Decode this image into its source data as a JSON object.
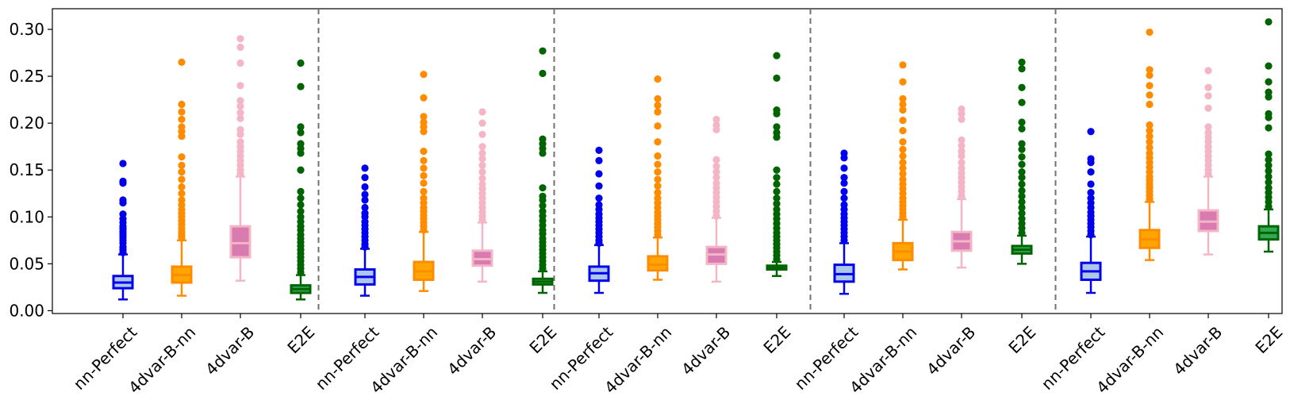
{
  "chart_data": {
    "type": "box",
    "title": "",
    "xlabel": "",
    "ylabel": "",
    "ylim": [
      -0.003,
      0.322
    ],
    "yticks": [
      0.0,
      0.05,
      0.1,
      0.15,
      0.2,
      0.25,
      0.3
    ],
    "ytick_labels": [
      "0.00",
      "0.05",
      "0.10",
      "0.15",
      "0.20",
      "0.25",
      "0.30"
    ],
    "grid": false,
    "legend": "none",
    "categories": [
      "nn-Perfect",
      "4dvar-B-nn",
      "4dvar-B",
      "E2E"
    ],
    "series_styles": [
      {
        "category": "nn-Perfect",
        "edge": "#0000ee",
        "fill": "#aec7e8"
      },
      {
        "category": "4dvar-B-nn",
        "edge": "#ff8c00",
        "fill": "#ffa500"
      },
      {
        "category": "4dvar-B",
        "edge": "#f4b6c6",
        "fill": "#d97bb0"
      },
      {
        "category": "E2E",
        "edge": "#006400",
        "fill": "#32a852"
      }
    ],
    "separator_style": "dashed gray vertical lines between groups",
    "groups": [
      {
        "boxes": [
          {
            "category": "nn-Perfect",
            "whisker_low": 0.012,
            "q1": 0.024,
            "median": 0.03,
            "q3": 0.037,
            "whisker_high": 0.06,
            "outliers": [
              0.062,
              0.065,
              0.068,
              0.072,
              0.075,
              0.078,
              0.081,
              0.084,
              0.087,
              0.09,
              0.094,
              0.098,
              0.103,
              0.115,
              0.118,
              0.136,
              0.138,
              0.157
            ]
          },
          {
            "category": "4dvar-B-nn",
            "whisker_low": 0.016,
            "q1": 0.03,
            "median": 0.038,
            "q3": 0.047,
            "whisker_high": 0.075,
            "outliers": [
              0.078,
              0.081,
              0.084,
              0.088,
              0.092,
              0.096,
              0.1,
              0.104,
              0.108,
              0.113,
              0.118,
              0.125,
              0.132,
              0.14,
              0.148,
              0.155,
              0.164,
              0.186,
              0.191,
              0.196,
              0.204,
              0.212,
              0.22,
              0.265
            ]
          },
          {
            "category": "4dvar-B",
            "whisker_low": 0.032,
            "q1": 0.057,
            "median": 0.072,
            "q3": 0.09,
            "whisker_high": 0.143,
            "outliers": [
              0.146,
              0.15,
              0.155,
              0.16,
              0.165,
              0.17,
              0.175,
              0.18,
              0.188,
              0.193,
              0.205,
              0.211,
              0.218,
              0.224,
              0.24,
              0.264,
              0.281,
              0.29
            ]
          },
          {
            "category": "E2E",
            "whisker_low": 0.012,
            "q1": 0.019,
            "median": 0.023,
            "q3": 0.027,
            "whisker_high": 0.038,
            "outliers": [
              0.041,
              0.045,
              0.049,
              0.053,
              0.057,
              0.061,
              0.065,
              0.069,
              0.073,
              0.077,
              0.081,
              0.086,
              0.09,
              0.095,
              0.1,
              0.106,
              0.113,
              0.12,
              0.127,
              0.15,
              0.168,
              0.173,
              0.178,
              0.19,
              0.196,
              0.239,
              0.264
            ]
          }
        ]
      },
      {
        "boxes": [
          {
            "category": "nn-Perfect",
            "whisker_low": 0.016,
            "q1": 0.028,
            "median": 0.036,
            "q3": 0.044,
            "whisker_high": 0.066,
            "outliers": [
              0.068,
              0.071,
              0.075,
              0.079,
              0.083,
              0.087,
              0.091,
              0.095,
              0.1,
              0.104,
              0.11,
              0.118,
              0.124,
              0.132,
              0.142,
              0.152
            ]
          },
          {
            "category": "4dvar-B-nn",
            "whisker_low": 0.021,
            "q1": 0.033,
            "median": 0.042,
            "q3": 0.052,
            "whisker_high": 0.084,
            "outliers": [
              0.086,
              0.09,
              0.094,
              0.098,
              0.102,
              0.106,
              0.11,
              0.115,
              0.12,
              0.127,
              0.136,
              0.144,
              0.152,
              0.16,
              0.17,
              0.191,
              0.196,
              0.201,
              0.207,
              0.227,
              0.252
            ]
          },
          {
            "category": "4dvar-B",
            "whisker_low": 0.031,
            "q1": 0.048,
            "median": 0.055,
            "q3": 0.064,
            "whisker_high": 0.094,
            "outliers": [
              0.097,
              0.101,
              0.105,
              0.11,
              0.115,
              0.12,
              0.125,
              0.13,
              0.135,
              0.141,
              0.148,
              0.155,
              0.162,
              0.168,
              0.175,
              0.188,
              0.2,
              0.212
            ]
          },
          {
            "category": "E2E",
            "whisker_low": 0.019,
            "q1": 0.028,
            "median": 0.031,
            "q3": 0.034,
            "whisker_high": 0.042,
            "outliers": [
              0.045,
              0.049,
              0.053,
              0.057,
              0.061,
              0.065,
              0.069,
              0.073,
              0.077,
              0.082,
              0.086,
              0.091,
              0.096,
              0.101,
              0.106,
              0.112,
              0.118,
              0.122,
              0.131,
              0.168,
              0.173,
              0.178,
              0.183,
              0.253,
              0.277
            ]
          }
        ]
      },
      {
        "boxes": [
          {
            "category": "nn-Perfect",
            "whisker_low": 0.019,
            "q1": 0.032,
            "median": 0.04,
            "q3": 0.047,
            "whisker_high": 0.07,
            "outliers": [
              0.072,
              0.075,
              0.079,
              0.083,
              0.087,
              0.091,
              0.095,
              0.099,
              0.103,
              0.108,
              0.113,
              0.12,
              0.133,
              0.146,
              0.16,
              0.171
            ]
          },
          {
            "category": "4dvar-B-nn",
            "whisker_low": 0.033,
            "q1": 0.043,
            "median": 0.049,
            "q3": 0.058,
            "whisker_high": 0.078,
            "outliers": [
              0.081,
              0.085,
              0.089,
              0.093,
              0.097,
              0.101,
              0.105,
              0.11,
              0.115,
              0.12,
              0.126,
              0.133,
              0.14,
              0.148,
              0.156,
              0.165,
              0.18,
              0.197,
              0.212,
              0.219,
              0.226,
              0.247
            ]
          },
          {
            "category": "4dvar-B",
            "whisker_low": 0.031,
            "q1": 0.05,
            "median": 0.06,
            "q3": 0.068,
            "whisker_high": 0.099,
            "outliers": [
              0.101,
              0.106,
              0.111,
              0.116,
              0.121,
              0.126,
              0.131,
              0.136,
              0.142,
              0.148,
              0.154,
              0.161,
              0.193,
              0.198,
              0.204
            ]
          },
          {
            "category": "E2E",
            "whisker_low": 0.037,
            "q1": 0.044,
            "median": 0.046,
            "q3": 0.048,
            "whisker_high": 0.052,
            "outliers": [
              0.055,
              0.059,
              0.063,
              0.067,
              0.071,
              0.075,
              0.079,
              0.083,
              0.088,
              0.093,
              0.098,
              0.103,
              0.108,
              0.114,
              0.12,
              0.127,
              0.135,
              0.142,
              0.15,
              0.185,
              0.19,
              0.196,
              0.21,
              0.214,
              0.248,
              0.272
            ]
          }
        ]
      },
      {
        "boxes": [
          {
            "category": "nn-Perfect",
            "whisker_low": 0.018,
            "q1": 0.031,
            "median": 0.039,
            "q3": 0.049,
            "whisker_high": 0.072,
            "outliers": [
              0.075,
              0.079,
              0.083,
              0.087,
              0.091,
              0.095,
              0.099,
              0.103,
              0.108,
              0.113,
              0.12,
              0.127,
              0.136,
              0.142,
              0.152,
              0.163,
              0.168
            ]
          },
          {
            "category": "4dvar-B-nn",
            "whisker_low": 0.044,
            "q1": 0.054,
            "median": 0.063,
            "q3": 0.072,
            "whisker_high": 0.097,
            "outliers": [
              0.1,
              0.104,
              0.108,
              0.112,
              0.116,
              0.12,
              0.125,
              0.13,
              0.135,
              0.14,
              0.146,
              0.152,
              0.158,
              0.165,
              0.172,
              0.18,
              0.192,
              0.203,
              0.214,
              0.22,
              0.226,
              0.244,
              0.262
            ]
          },
          {
            "category": "4dvar-B",
            "whisker_low": 0.046,
            "q1": 0.064,
            "median": 0.074,
            "q3": 0.084,
            "whisker_high": 0.119,
            "outliers": [
              0.122,
              0.127,
              0.132,
              0.137,
              0.142,
              0.147,
              0.152,
              0.158,
              0.165,
              0.17,
              0.176,
              0.182,
              0.204,
              0.21,
              0.215
            ]
          },
          {
            "category": "E2E",
            "whisker_low": 0.05,
            "q1": 0.061,
            "median": 0.065,
            "q3": 0.069,
            "whisker_high": 0.08,
            "outliers": [
              0.083,
              0.088,
              0.093,
              0.098,
              0.104,
              0.11,
              0.116,
              0.122,
              0.128,
              0.135,
              0.142,
              0.148,
              0.156,
              0.164,
              0.172,
              0.178,
              0.194,
              0.201,
              0.222,
              0.238,
              0.258,
              0.265
            ]
          }
        ]
      },
      {
        "boxes": [
          {
            "category": "nn-Perfect",
            "whisker_low": 0.019,
            "q1": 0.033,
            "median": 0.042,
            "q3": 0.051,
            "whisker_high": 0.079,
            "outliers": [
              0.081,
              0.085,
              0.089,
              0.093,
              0.097,
              0.101,
              0.105,
              0.11,
              0.115,
              0.12,
              0.126,
              0.135,
              0.148,
              0.158,
              0.162,
              0.191
            ]
          },
          {
            "category": "4dvar-B-nn",
            "whisker_low": 0.054,
            "q1": 0.067,
            "median": 0.076,
            "q3": 0.086,
            "whisker_high": 0.116,
            "outliers": [
              0.119,
              0.123,
              0.127,
              0.131,
              0.135,
              0.139,
              0.143,
              0.148,
              0.153,
              0.158,
              0.163,
              0.168,
              0.174,
              0.18,
              0.186,
              0.192,
              0.198,
              0.22,
              0.23,
              0.24,
              0.251,
              0.257,
              0.297
            ]
          },
          {
            "category": "4dvar-B",
            "whisker_low": 0.06,
            "q1": 0.085,
            "median": 0.095,
            "q3": 0.107,
            "whisker_high": 0.143,
            "outliers": [
              0.146,
              0.15,
              0.155,
              0.16,
              0.165,
              0.17,
              0.175,
              0.18,
              0.185,
              0.19,
              0.196,
              0.216,
              0.229,
              0.238,
              0.256
            ]
          },
          {
            "category": "E2E",
            "whisker_low": 0.063,
            "q1": 0.076,
            "median": 0.083,
            "q3": 0.09,
            "whisker_high": 0.108,
            "outliers": [
              0.111,
              0.116,
              0.121,
              0.126,
              0.131,
              0.137,
              0.143,
              0.149,
              0.155,
              0.161,
              0.167,
              0.195,
              0.206,
              0.21,
              0.228,
              0.233,
              0.244,
              0.261,
              0.308
            ]
          }
        ]
      }
    ]
  }
}
